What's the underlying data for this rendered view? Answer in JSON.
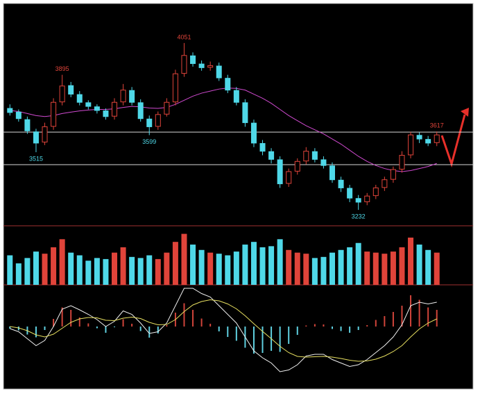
{
  "chart_data": [
    {
      "type": "candlestick",
      "open": [
        3730,
        3712,
        3675,
        3615,
        3565,
        3642,
        3762,
        3842,
        3798,
        3758,
        3738,
        3718,
        3692,
        3762,
        3818,
        3758,
        3678,
        3642,
        3702,
        3762,
        3902,
        3988,
        3948,
        3932,
        3938,
        3878,
        3818,
        3758,
        3658,
        3558,
        3518,
        3478,
        3362,
        3422,
        3472,
        3518,
        3478,
        3448,
        3378,
        3338,
        3288,
        3272,
        3302,
        3342,
        3382,
        3432,
        3502,
        3598,
        3578,
        3562
      ],
      "high": [
        3750,
        3725,
        3690,
        3630,
        3660,
        3780,
        3895,
        3860,
        3815,
        3770,
        3750,
        3730,
        3780,
        3850,
        3835,
        3775,
        3695,
        3715,
        3780,
        3920,
        4051,
        4005,
        3965,
        3960,
        3955,
        3895,
        3835,
        3775,
        3675,
        3575,
        3535,
        3495,
        3435,
        3485,
        3540,
        3535,
        3495,
        3465,
        3395,
        3355,
        3305,
        3315,
        3355,
        3395,
        3445,
        3520,
        3615,
        3612,
        3595,
        3617
      ],
      "low": [
        3695,
        3665,
        3605,
        3515,
        3550,
        3625,
        3745,
        3785,
        3745,
        3725,
        3705,
        3675,
        3675,
        3745,
        3745,
        3665,
        3599,
        3625,
        3690,
        3745,
        3885,
        3935,
        3915,
        3915,
        3865,
        3805,
        3745,
        3640,
        3540,
        3500,
        3460,
        3340,
        3345,
        3405,
        3455,
        3465,
        3435,
        3365,
        3320,
        3270,
        3232,
        3255,
        3285,
        3325,
        3365,
        3415,
        3485,
        3560,
        3545,
        3545
      ],
      "close": [
        3710,
        3680,
        3620,
        3560,
        3640,
        3760,
        3840,
        3800,
        3760,
        3740,
        3720,
        3690,
        3760,
        3820,
        3760,
        3680,
        3640,
        3700,
        3760,
        3900,
        3990,
        3950,
        3930,
        3940,
        3880,
        3820,
        3760,
        3660,
        3560,
        3520,
        3480,
        3360,
        3420,
        3470,
        3520,
        3480,
        3450,
        3380,
        3340,
        3290,
        3270,
        3300,
        3340,
        3380,
        3430,
        3500,
        3600,
        3580,
        3560,
        3600
      ],
      "ma_values": [
        3720,
        3715,
        3705,
        3695,
        3690,
        3695,
        3705,
        3712,
        3718,
        3722,
        3725,
        3725,
        3728,
        3735,
        3740,
        3738,
        3732,
        3730,
        3735,
        3750,
        3770,
        3790,
        3805,
        3815,
        3825,
        3830,
        3828,
        3820,
        3800,
        3780,
        3755,
        3725,
        3695,
        3670,
        3645,
        3625,
        3605,
        3580,
        3555,
        3525,
        3495,
        3470,
        3450,
        3435,
        3425,
        3420,
        3425,
        3435,
        3445,
        3460
      ],
      "ma_color": "#d04ad0",
      "up_color": "#e0443a",
      "down_color": "#4fd8e8",
      "levels": [
        3614,
        3454
      ],
      "level_color": "#d8d8d8",
      "ylim": [
        3154,
        4245
      ]
    },
    {
      "type": "bar",
      "values": [
        55,
        40,
        50,
        62,
        58,
        70,
        85,
        60,
        55,
        45,
        50,
        48,
        60,
        70,
        52,
        50,
        55,
        48,
        60,
        80,
        95,
        75,
        65,
        60,
        58,
        55,
        62,
        75,
        80,
        70,
        72,
        85,
        65,
        60,
        58,
        50,
        52,
        60,
        65,
        70,
        78,
        62,
        60,
        58,
        62,
        70,
        88,
        75,
        65,
        60
      ],
      "ylim": [
        0,
        110
      ]
    },
    {
      "type": "macd",
      "values": [
        -6,
        -11,
        -23,
        -31,
        -10,
        22,
        55,
        48,
        26,
        9,
        -5,
        -18,
        -2,
        21,
        8,
        -13,
        -32,
        -20,
        4,
        40,
        67,
        48,
        23,
        8,
        -14,
        -30,
        -41,
        -61,
        -78,
        -76,
        -70,
        -73,
        -50,
        -24,
        3,
        7,
        6,
        -7,
        -13,
        -18,
        -10,
        4,
        19,
        30,
        42,
        60,
        90,
        77,
        55,
        48
      ],
      "dif": [
        -6,
        -15,
        -35,
        -55,
        -40,
        0,
        50,
        60,
        48,
        35,
        20,
        0,
        15,
        45,
        35,
        10,
        -20,
        -15,
        10,
        60,
        110,
        110,
        95,
        85,
        60,
        35,
        10,
        -30,
        -70,
        -90,
        -105,
        -130,
        -125,
        -110,
        -85,
        -80,
        -80,
        -95,
        -105,
        -115,
        -110,
        -95,
        -75,
        -55,
        -30,
        5,
        60,
        70,
        65,
        70
      ],
      "dea": [
        0,
        -4,
        -12,
        -24,
        -30,
        -22,
        -5,
        12,
        22,
        26,
        25,
        18,
        17,
        24,
        27,
        23,
        12,
        5,
        6,
        20,
        43,
        62,
        72,
        77,
        74,
        65,
        51,
        31,
        8,
        -14,
        -35,
        -57,
        -75,
        -86,
        -88,
        -87,
        -86,
        -88,
        -92,
        -97,
        -100,
        -99,
        -94,
        -85,
        -72,
        -55,
        -30,
        -7,
        10,
        22
      ],
      "dif_color": "#f0f0f0",
      "dea_color": "#e8e060",
      "pos_color": "#d0443a",
      "neg_color": "#5fd0e0",
      "ylim": [
        -180,
        120
      ]
    }
  ]
}
